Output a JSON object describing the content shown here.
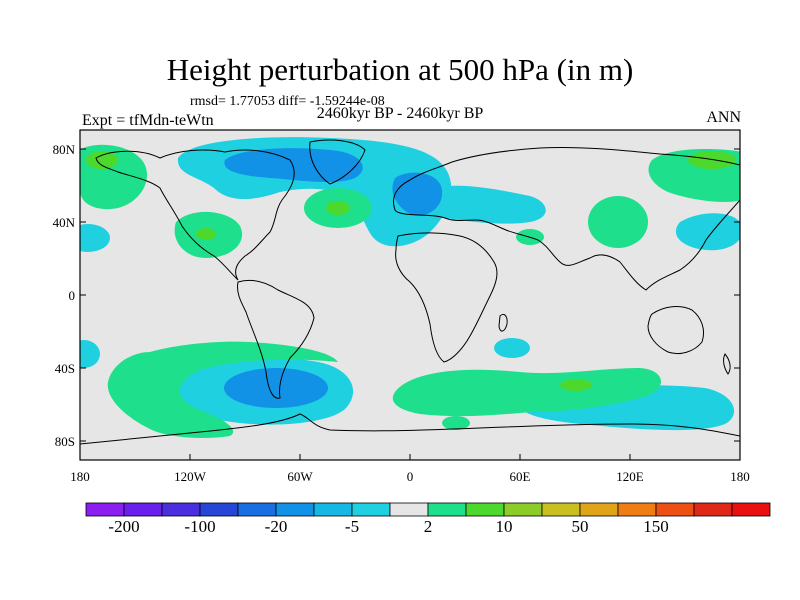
{
  "title": "Height perturbation at 500 hPa (in m)",
  "stats": "rmsd= 1.77053 diff= -1.59244e-08",
  "experiment": "Expt = tfMdn-teWtn",
  "period": "2460kyr BP - 2460kyr BP",
  "season": "ANN",
  "map": {
    "x_ticks": [
      "180",
      "120W",
      "60W",
      "0",
      "60E",
      "120E",
      "180"
    ],
    "y_ticks": [
      "80N",
      "40N",
      "0",
      "40S",
      "80S"
    ]
  },
  "colorbar": {
    "labels": [
      "-200",
      "-100",
      "-20",
      "-5",
      "2",
      "10",
      "50",
      "150"
    ],
    "colors": [
      "#8a1ff0",
      "#6a20ec",
      "#4a2ee0",
      "#2646d8",
      "#1a6ee2",
      "#1292e6",
      "#14b8e2",
      "#1ed0e0",
      "#e6e6e6",
      "#1ee08c",
      "#4cd82c",
      "#8ccc28",
      "#c8c020",
      "#e0a418",
      "#ee7e14",
      "#ee5014",
      "#e02818",
      "#e81010"
    ]
  }
}
